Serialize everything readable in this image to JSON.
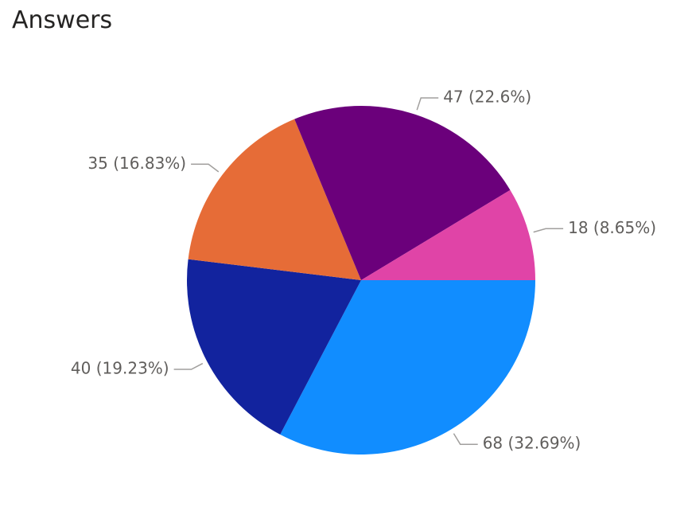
{
  "chart_data": {
    "type": "pie",
    "title": "Answers",
    "slices": [
      {
        "value": 68,
        "label": "68 (32.69%)",
        "color": "#118dff"
      },
      {
        "value": 40,
        "label": "40 (19.23%)",
        "color": "#12239e"
      },
      {
        "value": 35,
        "label": "35 (16.83%)",
        "color": "#e66c37"
      },
      {
        "value": 47,
        "label": "47 (22.6%)",
        "color": "#6b007b"
      },
      {
        "value": 18,
        "label": "18 (8.65%)",
        "color": "#e044a7"
      }
    ],
    "start_angle_deg": 0,
    "direction": "clockwise"
  }
}
